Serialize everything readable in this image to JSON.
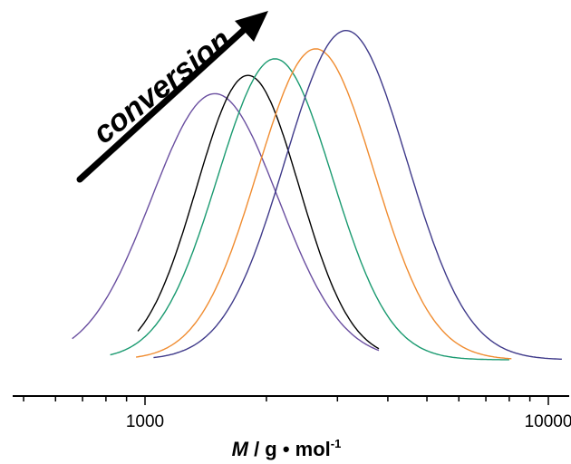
{
  "chart_data": {
    "type": "line",
    "xscale": "log",
    "xlim": [
      500,
      11500
    ],
    "x_ticks": [
      1000,
      10000
    ],
    "x_tick_labels": [
      "1000",
      "10000"
    ],
    "xlabel": {
      "italic": "M",
      "rest": " / g • mol",
      "sup": "-1"
    },
    "ylabel": "",
    "grid": false,
    "annotation": "conversion",
    "series": [
      {
        "color": "#6a4fa0",
        "peak_x": 1490,
        "peak_y": 0.8,
        "sigma": 0.37,
        "x_range": [
          660,
          3800
        ]
      },
      {
        "color": "#000000",
        "peak_x": 1800,
        "peak_y": 0.855,
        "sigma": 0.3,
        "x_range": [
          960,
          3800
        ]
      },
      {
        "color": "#1a9a70",
        "peak_x": 2100,
        "peak_y": 0.905,
        "sigma": 0.335,
        "x_range": [
          820,
          8000
        ]
      },
      {
        "color": "#f08c30",
        "peak_x": 2650,
        "peak_y": 0.935,
        "sigma": 0.34,
        "x_range": [
          950,
          8100
        ]
      },
      {
        "color": "#3f3a8a",
        "peak_x": 3150,
        "peak_y": 0.99,
        "sigma": 0.355,
        "x_range": [
          1050,
          10800
        ]
      }
    ]
  }
}
